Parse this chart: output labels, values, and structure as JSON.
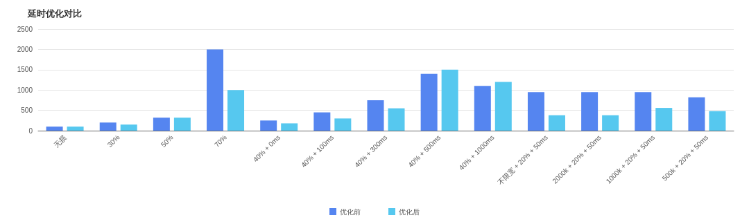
{
  "chart_data": {
    "type": "bar",
    "title": "延时优化对比",
    "categories": [
      "无损",
      "30%",
      "50%",
      "70%",
      "40% + 0ms",
      "40% + 100ms",
      "40% + 300ms",
      "40% + 500ms",
      "40% + 1000ms",
      "不限宽 + 20% + 50ms",
      "2000k + 20% + 50ms",
      "1000k + 20% + 50ms",
      "500k + 20% + 50ms"
    ],
    "series": [
      {
        "name": "优化前",
        "color": "#5585f0",
        "values": [
          100,
          200,
          320,
          2000,
          250,
          450,
          750,
          1400,
          1100,
          950,
          950,
          950,
          820
        ]
      },
      {
        "name": "优化后",
        "color": "#56c8ef",
        "values": [
          100,
          150,
          320,
          1000,
          180,
          300,
          550,
          1500,
          1200,
          380,
          380,
          560,
          480
        ]
      }
    ],
    "ylim": [
      0,
      2500
    ],
    "yticks": [
      0,
      500,
      1000,
      1500,
      2000,
      2500
    ],
    "grid": "y",
    "legend": "bottom"
  }
}
